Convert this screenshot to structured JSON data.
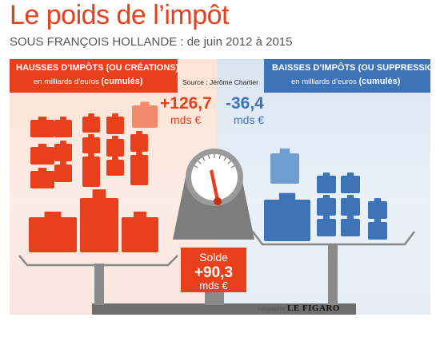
{
  "header": {
    "title": "Le poids de l’impôt",
    "subtitle": "SOUS FRANÇOIS HOLLANDE : de juin 2012 à 2015"
  },
  "source": "Source : Jérôme Chartier",
  "panels": {
    "left": {
      "title": "HAUSSES D’IMPÔTS (OU CRÉATIONS)",
      "subtitle": "en milliards d’euros",
      "subtitle_bold": "(cumulés)",
      "value": "+126,7",
      "unit": "mds €",
      "color": "#e8401c"
    },
    "right": {
      "title": "BAISSES D’IMPÔTS (OU SUPPRESSIONS)",
      "subtitle": "en milliards d’euros",
      "subtitle_bold": "(cumulés)",
      "value": "-36,4",
      "unit": "mds €",
      "color": "#3d73b7"
    }
  },
  "balance": {
    "label": "Solde",
    "value": "+90,3",
    "unit": "mds €"
  },
  "credit": {
    "prefix": "Infographie",
    "brand": "LE FIGARO"
  },
  "chart_data": {
    "type": "bar",
    "categories": [
      "HAUSSES D’IMPÔTS (OU CRÉATIONS)",
      "BAISSES D’IMPÔTS (OU SUPPRESSIONS)",
      "Solde"
    ],
    "values": [
      126.7,
      -36.4,
      90.3
    ],
    "unit": "mds €"
  }
}
